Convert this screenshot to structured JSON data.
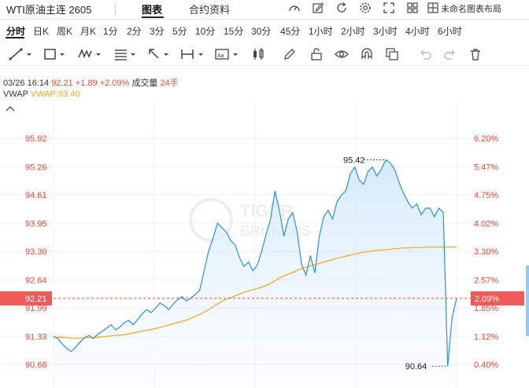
{
  "header": {
    "title": "WTI原油主连 2605",
    "tabs": [
      {
        "label": "图表",
        "active": true
      },
      {
        "label": "合约资料",
        "active": false
      }
    ],
    "layout_label": "未命名图表布局",
    "icons": [
      "gauge-icon",
      "edit-icon",
      "refresh-icon",
      "settings-icon",
      "fullscreen-icon",
      "grid-layout-icon",
      "chevron-down-icon"
    ]
  },
  "periods": [
    "分时",
    "日K",
    "周K",
    "月K",
    "1分",
    "2分",
    "3分",
    "5分",
    "10分",
    "15分",
    "30分",
    "45分",
    "1小时",
    "2小时",
    "3小时",
    "4小时",
    "6小时"
  ],
  "active_period": "分时",
  "toolbar": [
    "line-tool-icon",
    "rectangle-tool-icon",
    "wave-tool-icon",
    "fib-tool-icon",
    "arrow-tool-icon",
    "measure-tool-icon",
    "text-tool-icon",
    "candle-tool-icon",
    "pencil-icon",
    "lock-icon",
    "eye-icon",
    "magnet-icon",
    "layers-icon",
    "undo-icon",
    "redo-icon",
    "trash-icon"
  ],
  "info": {
    "datetime": "03/26 16:14",
    "price": "92.21",
    "change": "+1.89",
    "change_pct": "+2.09%",
    "volume_label": "成交量",
    "volume": "24手"
  },
  "vwap": {
    "label": "VWAP",
    "value_label": "VWAP:93.40"
  },
  "chart_data": {
    "type": "line",
    "series": [
      {
        "name": "price",
        "color": "#2f8fd8",
        "values": [
          91.33,
          91.28,
          91.15,
          91.05,
          90.98,
          91.08,
          91.2,
          91.3,
          91.35,
          91.28,
          91.38,
          91.45,
          91.52,
          91.6,
          91.48,
          91.55,
          91.65,
          91.7,
          91.6,
          91.72,
          91.85,
          91.95,
          91.88,
          91.98,
          92.1,
          92.05,
          91.95,
          92.08,
          92.18,
          92.25,
          92.15,
          92.22,
          92.3,
          92.4,
          92.85,
          93.3,
          93.6,
          93.95,
          93.85,
          93.75,
          93.55,
          93.45,
          93.15,
          92.95,
          93.05,
          92.85,
          92.98,
          93.3,
          93.7,
          94.05,
          94.7,
          94.25,
          93.65,
          94.05,
          94.2,
          93.75,
          93.0,
          92.75,
          93.2,
          92.8,
          93.65,
          94.1,
          94.25,
          94.05,
          94.45,
          94.6,
          94.7,
          95.1,
          95.25,
          94.95,
          94.85,
          95.15,
          95.25,
          95.05,
          95.2,
          95.42,
          95.35,
          95.2,
          94.9,
          94.65,
          94.45,
          94.3,
          94.4,
          94.15,
          94.3,
          94.3,
          94.1,
          94.3,
          94.2,
          90.64,
          91.78,
          92.21
        ]
      },
      {
        "name": "VWAP",
        "color": "#f5a623",
        "values": [
          91.3,
          91.31,
          91.31,
          91.3,
          91.29,
          91.29,
          91.29,
          91.3,
          91.3,
          91.31,
          91.31,
          91.32,
          91.33,
          91.34,
          91.35,
          91.36,
          91.37,
          91.39,
          91.41,
          91.43,
          91.45,
          91.47,
          91.49,
          91.51,
          91.54,
          91.56,
          91.59,
          91.62,
          91.65,
          91.68,
          91.71,
          91.75,
          91.79,
          91.84,
          91.89,
          91.95,
          92.02,
          92.08,
          92.14,
          92.19,
          92.23,
          92.27,
          92.31,
          92.35,
          92.38,
          92.41,
          92.44,
          92.47,
          92.51,
          92.56,
          92.62,
          92.68,
          92.73,
          92.77,
          92.81,
          92.86,
          92.9,
          92.93,
          92.96,
          92.99,
          93.02,
          93.05,
          93.08,
          93.11,
          93.14,
          93.16,
          93.19,
          93.21,
          93.24,
          93.26,
          93.28,
          93.29,
          93.31,
          93.32,
          93.33,
          93.34,
          93.35,
          93.36,
          93.37,
          93.38,
          93.38,
          93.39,
          93.39,
          93.39,
          93.4,
          93.4,
          93.4,
          93.4,
          93.4,
          93.4,
          93.4,
          93.4
        ]
      }
    ],
    "y_ticks_left": [
      "95.92",
      "95.26",
      "94.61",
      "93.95",
      "93.30",
      "92.64",
      "91.99",
      "91.33",
      "90.68"
    ],
    "y_ticks_right": [
      "6.20%",
      "5.47%",
      "4.75%",
      "4.02%",
      "3.30%",
      "2.57%",
      "1.85%",
      "1.12%",
      "0.40%"
    ],
    "ylim": [
      90.45,
      96.35
    ],
    "current_price": {
      "label": "92.21",
      "pct_label": "2.09%",
      "value": 92.21
    },
    "annotations": [
      {
        "label": "95.42",
        "value": 95.42,
        "type": "high"
      },
      {
        "label": "90.64",
        "value": 90.64,
        "type": "low"
      }
    ],
    "watermark": [
      "TIGER",
      "BROKERS"
    ],
    "grid": true
  }
}
